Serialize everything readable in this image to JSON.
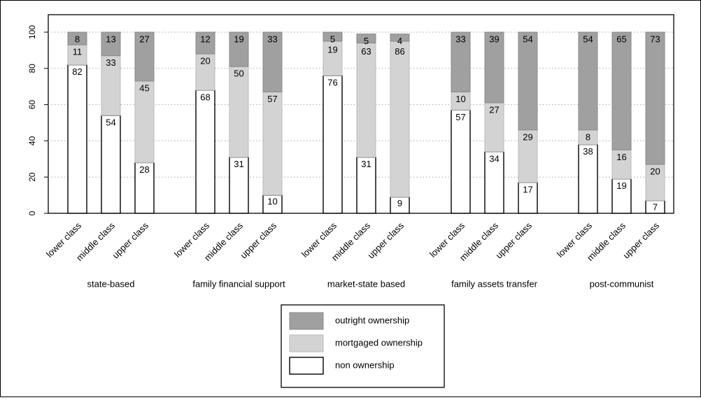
{
  "chart_data": {
    "type": "bar",
    "stacked": true,
    "groups": [
      {
        "label": "state-based",
        "categories": [
          "lower class",
          "middle class",
          "upper class"
        ],
        "non_ownership": [
          82,
          54,
          28
        ],
        "mortgaged_ownership": [
          11,
          33,
          45
        ],
        "outright_ownership": [
          8,
          13,
          27
        ]
      },
      {
        "label": "family financial support",
        "categories": [
          "lower class",
          "middle class",
          "upper class"
        ],
        "non_ownership": [
          68,
          31,
          10
        ],
        "mortgaged_ownership": [
          20,
          50,
          57
        ],
        "outright_ownership": [
          12,
          19,
          33
        ]
      },
      {
        "label": "market-state based",
        "categories": [
          "lower class",
          "middle class",
          "upper class"
        ],
        "non_ownership": [
          76,
          31,
          9
        ],
        "mortgaged_ownership": [
          19,
          63,
          86
        ],
        "outright_ownership": [
          5,
          5,
          4
        ]
      },
      {
        "label": "family assets transfer",
        "categories": [
          "lower class",
          "middle class",
          "upper class"
        ],
        "non_ownership": [
          57,
          34,
          17
        ],
        "mortgaged_ownership": [
          10,
          27,
          29
        ],
        "outright_ownership": [
          33,
          39,
          54
        ]
      },
      {
        "label": "post-communist",
        "categories": [
          "lower class",
          "middle class",
          "upper class"
        ],
        "non_ownership": [
          38,
          19,
          7
        ],
        "mortgaged_ownership": [
          8,
          16,
          20
        ],
        "outright_ownership": [
          54,
          65,
          73
        ]
      }
    ],
    "series": [
      {
        "key": "non_ownership",
        "name": "non ownership",
        "color": "#ffffff"
      },
      {
        "key": "mortgaged_ownership",
        "name": "mortgaged ownership",
        "color": "#d3d3d3"
      },
      {
        "key": "outright_ownership",
        "name": "outright ownership",
        "color": "#a0a0a0"
      }
    ],
    "legend_order": [
      "outright_ownership",
      "mortgaged_ownership",
      "non_ownership"
    ],
    "ylim": [
      0,
      100
    ],
    "yticks": [
      0,
      20,
      40,
      60,
      80,
      100
    ],
    "grid": true,
    "legend_position": "bottom-center",
    "title": "",
    "xlabel": "",
    "ylabel": ""
  }
}
